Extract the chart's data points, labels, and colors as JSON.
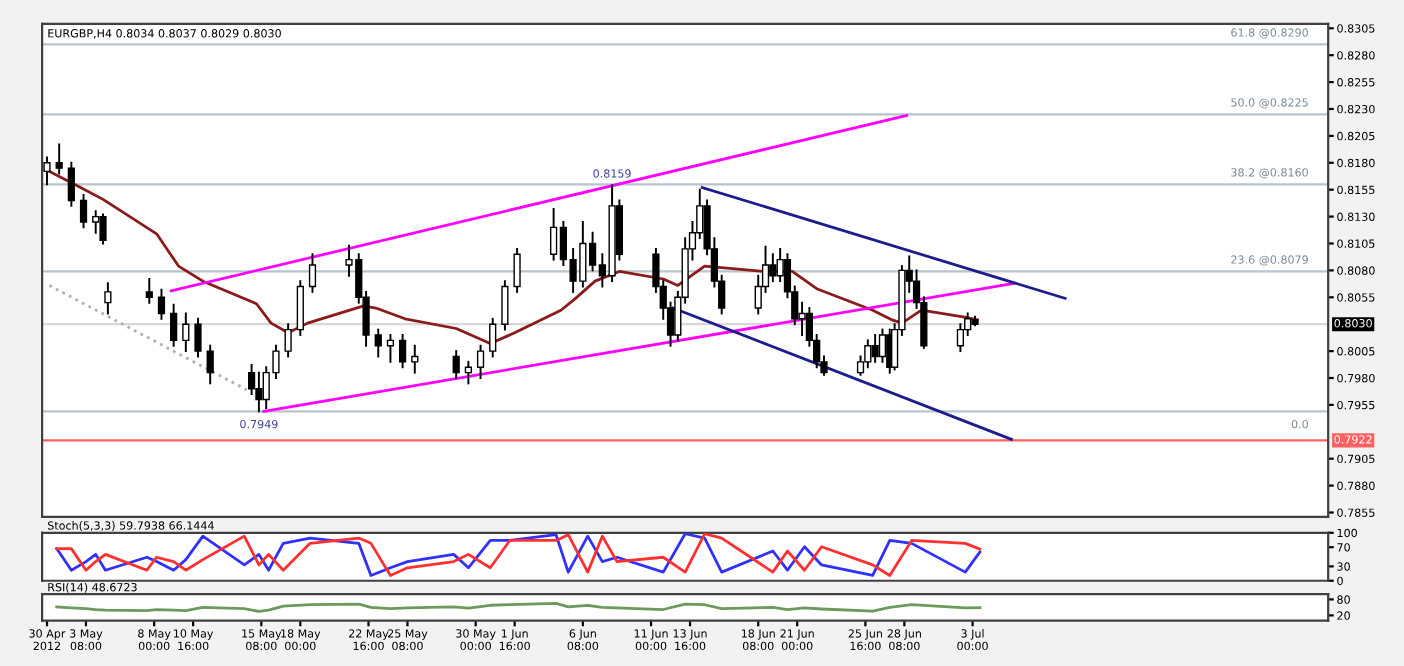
{
  "chart_data": [
    {
      "type": "candlestick",
      "title": "EURGBP,H4 0.8034 0.8037 0.8029 0.8030",
      "x": [
        "2012-04-30T16:00",
        "2012-05-01T12:00",
        "2012-05-02T08:00",
        "2012-05-03T04:00",
        "2012-05-04T00:00",
        "2012-05-04T12:00",
        "2012-05-04T20:00",
        "2012-05-07T16:00",
        "2012-05-08T12:00",
        "2012-05-09T08:00",
        "2012-05-10T04:00",
        "2012-05-11T00:00",
        "2012-05-11T20:00",
        "2012-05-14T16:00",
        "2012-05-15T04:00",
        "2012-05-15T16:00",
        "2012-05-16T08:00",
        "2012-05-17T04:00",
        "2012-05-18T00:00",
        "2012-05-18T20:00",
        "2012-05-21T08:00",
        "2012-05-22T00:00",
        "2012-05-22T12:00",
        "2012-05-23T08:00",
        "2012-05-24T04:00",
        "2012-05-25T00:00",
        "2012-05-25T20:00",
        "2012-05-28T16:00",
        "2012-05-29T12:00",
        "2012-05-30T08:00",
        "2012-05-31T04:00",
        "2012-06-01T00:00",
        "2012-06-01T20:00",
        "2012-06-04T08:00",
        "2012-06-05T00:00",
        "2012-06-05T16:00",
        "2012-06-06T08:00",
        "2012-06-07T00:00",
        "2012-06-07T16:00",
        "2012-06-08T08:00",
        "2012-06-08T20:00",
        "2012-06-11T08:00",
        "2012-06-11T20:00",
        "2012-06-12T08:00",
        "2012-06-12T20:00",
        "2012-06-13T08:00",
        "2012-06-13T20:00",
        "2012-06-14T08:00",
        "2012-06-14T20:00",
        "2012-06-15T08:00",
        "2012-06-15T20:00",
        "2012-06-18T08:00",
        "2012-06-18T20:00",
        "2012-06-19T08:00",
        "2012-06-19T20:00",
        "2012-06-20T08:00",
        "2012-06-20T20:00",
        "2012-06-21T08:00",
        "2012-06-21T20:00",
        "2012-06-22T08:00",
        "2012-06-22T20:00",
        "2012-06-25T08:00",
        "2012-06-25T20:00",
        "2012-06-26T08:00",
        "2012-06-26T20:00",
        "2012-06-27T08:00",
        "2012-06-27T16:00",
        "2012-06-28T04:00",
        "2012-06-28T16:00",
        "2012-06-29T04:00",
        "2012-06-29T16:00",
        "2012-07-02T04:00",
        "2012-07-02T16:00",
        "2012-07-03T04:00"
      ],
      "ohlc": [
        [
          0.8172,
          0.8185,
          0.816,
          0.818
        ],
        [
          0.818,
          0.8197,
          0.817,
          0.8175
        ],
        [
          0.8175,
          0.818,
          0.814,
          0.8145
        ],
        [
          0.8145,
          0.815,
          0.812,
          0.8125
        ],
        [
          0.8125,
          0.8135,
          0.8115,
          0.813
        ],
        [
          0.813,
          0.8132,
          0.8105,
          0.8108
        ],
        [
          0.805,
          0.8068,
          0.804,
          0.806
        ],
        [
          0.806,
          0.8072,
          0.805,
          0.8055
        ],
        [
          0.8055,
          0.8062,
          0.8035,
          0.804
        ],
        [
          0.804,
          0.8048,
          0.801,
          0.8015
        ],
        [
          0.8015,
          0.804,
          0.8005,
          0.803
        ],
        [
          0.803,
          0.8035,
          0.8,
          0.8005
        ],
        [
          0.8005,
          0.801,
          0.7975,
          0.7985
        ],
        [
          0.7985,
          0.7992,
          0.7965,
          0.797
        ],
        [
          0.797,
          0.7985,
          0.7949,
          0.796
        ],
        [
          0.796,
          0.799,
          0.7952,
          0.7985
        ],
        [
          0.7985,
          0.801,
          0.798,
          0.8005
        ],
        [
          0.8005,
          0.803,
          0.8,
          0.8025
        ],
        [
          0.8025,
          0.807,
          0.802,
          0.8065
        ],
        [
          0.8065,
          0.8095,
          0.806,
          0.8085
        ],
        [
          0.8085,
          0.8103,
          0.8075,
          0.809
        ],
        [
          0.809,
          0.8095,
          0.805,
          0.8055
        ],
        [
          0.8055,
          0.806,
          0.801,
          0.802
        ],
        [
          0.802,
          0.8025,
          0.8,
          0.801
        ],
        [
          0.801,
          0.802,
          0.7995,
          0.8015
        ],
        [
          0.8015,
          0.802,
          0.799,
          0.7995
        ],
        [
          0.7995,
          0.801,
          0.7985,
          0.8
        ],
        [
          0.8,
          0.8005,
          0.798,
          0.7985
        ],
        [
          0.7985,
          0.7995,
          0.7975,
          0.799
        ],
        [
          0.799,
          0.801,
          0.798,
          0.8005
        ],
        [
          0.8005,
          0.8035,
          0.8,
          0.803
        ],
        [
          0.803,
          0.807,
          0.8025,
          0.8065
        ],
        [
          0.8065,
          0.81,
          0.806,
          0.8095
        ],
        [
          0.8095,
          0.8137,
          0.809,
          0.812
        ],
        [
          0.812,
          0.8125,
          0.8085,
          0.809
        ],
        [
          0.809,
          0.81,
          0.806,
          0.807
        ],
        [
          0.807,
          0.8125,
          0.8065,
          0.8105
        ],
        [
          0.8105,
          0.8115,
          0.808,
          0.8085
        ],
        [
          0.8085,
          0.8095,
          0.8065,
          0.8075
        ],
        [
          0.8075,
          0.8159,
          0.807,
          0.814
        ],
        [
          0.814,
          0.8145,
          0.809,
          0.8095
        ],
        [
          0.8095,
          0.81,
          0.806,
          0.8065
        ],
        [
          0.8065,
          0.807,
          0.8035,
          0.8045
        ],
        [
          0.8045,
          0.805,
          0.801,
          0.802
        ],
        [
          0.802,
          0.806,
          0.8015,
          0.8055
        ],
        [
          0.8055,
          0.811,
          0.805,
          0.81
        ],
        [
          0.81,
          0.8125,
          0.809,
          0.8115
        ],
        [
          0.8115,
          0.8155,
          0.811,
          0.814
        ],
        [
          0.814,
          0.8145,
          0.8095,
          0.81
        ],
        [
          0.81,
          0.811,
          0.8065,
          0.807
        ],
        [
          0.807,
          0.8075,
          0.804,
          0.8045
        ],
        [
          0.8045,
          0.8075,
          0.804,
          0.8065
        ],
        [
          0.8065,
          0.8102,
          0.806,
          0.8085
        ],
        [
          0.8085,
          0.8095,
          0.807,
          0.8075
        ],
        [
          0.8075,
          0.81,
          0.807,
          0.809
        ],
        [
          0.809,
          0.8095,
          0.8055,
          0.806
        ],
        [
          0.806,
          0.8065,
          0.803,
          0.8035
        ],
        [
          0.8035,
          0.805,
          0.802,
          0.804
        ],
        [
          0.804,
          0.8045,
          0.801,
          0.8015
        ],
        [
          0.8015,
          0.802,
          0.799,
          0.7995
        ],
        [
          0.7995,
          0.8,
          0.7983,
          0.7985
        ],
        [
          0.7985,
          0.8,
          0.7983,
          0.7995
        ],
        [
          0.7995,
          0.8015,
          0.799,
          0.801
        ],
        [
          0.801,
          0.802,
          0.7995,
          0.8
        ],
        [
          0.8,
          0.8025,
          0.7995,
          0.802
        ],
        [
          0.802,
          0.8025,
          0.7985,
          0.799
        ],
        [
          0.799,
          0.803,
          0.7988,
          0.8025
        ],
        [
          0.8025,
          0.8084,
          0.802,
          0.808
        ],
        [
          0.808,
          0.8093,
          0.806,
          0.807
        ],
        [
          0.807,
          0.808,
          0.8045,
          0.805
        ],
        [
          0.805,
          0.8055,
          0.8008,
          0.801
        ],
        [
          0.801,
          0.803,
          0.8005,
          0.8025
        ],
        [
          0.8025,
          0.804,
          0.802,
          0.8035
        ],
        [
          0.8034,
          0.8037,
          0.8029,
          0.803
        ]
      ],
      "series": [
        {
          "type": "line",
          "color": "#8b1a1a",
          "x": [
            "2012-04-30T20:00",
            "2012-05-02T20:00",
            "2012-05-04T12:00",
            "2012-05-08T04:00",
            "2012-05-09T16:00",
            "2012-05-11T08:00",
            "2012-05-15T00:00",
            "2012-05-16T00:00",
            "2012-05-17T04:00",
            "2012-05-18T12:00",
            "2012-05-22T08:00",
            "2012-05-23T04:00",
            "2012-05-25T04:00",
            "2012-05-28T16:00",
            "2012-05-31T00:00",
            "2012-06-01T16:00",
            "2012-06-04T20:00",
            "2012-06-05T20:00",
            "2012-06-07T04:00",
            "2012-06-08T20:00",
            "2012-06-11T20:00",
            "2012-06-12T20:00",
            "2012-06-14T16:00",
            "2012-06-18T16:00",
            "2012-06-20T16:00",
            "2012-06-22T08:00",
            "2012-06-26T04:00",
            "2012-06-27T12:00",
            "2012-06-28T04:00",
            "2012-06-29T12:00",
            "2012-07-02T16:00",
            "2012-07-03T08:00"
          ],
          "values": [
            0.8172,
            0.8158,
            0.8146,
            0.8114,
            0.8084,
            0.807,
            0.8049,
            0.8031,
            0.8022,
            0.8031,
            0.8047,
            0.8045,
            0.8035,
            0.8026,
            0.8012,
            0.8022,
            0.8043,
            0.8054,
            0.807,
            0.8079,
            0.8072,
            0.8066,
            0.8084,
            0.8079,
            0.8079,
            0.8063,
            0.8043,
            0.8034,
            0.8031,
            0.8043,
            0.8036,
            0.8034
          ]
        },
        {
          "type": "line",
          "color": "#ff00ff",
          "x": [
            "2012-05-09T04:00",
            "2012-06-28T12:00"
          ],
          "values": [
            0.8061,
            0.8224
          ]
        },
        {
          "type": "line",
          "color": "#ff00ff",
          "x": [
            "2012-05-15T12:00",
            "2012-07-05T20:00"
          ],
          "values": [
            0.7949,
            0.8068
          ]
        },
        {
          "type": "line",
          "color": "#1c1c8c",
          "x": [
            "2012-06-14T12:00",
            "2012-07-09T08:00"
          ],
          "values": [
            0.8157,
            0.8054
          ]
        },
        {
          "type": "line",
          "color": "#1c1c8c",
          "x": [
            "2012-06-12T12:00",
            "2012-07-05T16:00"
          ],
          "values": [
            0.8045,
            0.7923
          ]
        },
        {
          "type": "line",
          "color": "#b0b0b0",
          "line_style": "dotted",
          "x": [
            "2012-04-30T20:00",
            "2012-05-14T08:00"
          ],
          "values": [
            0.8066,
            0.7969
          ]
        }
      ],
      "ref_lines": [
        {
          "axis": "y",
          "value": 0.829,
          "color": "#b8c4cc"
        },
        {
          "axis": "y",
          "value": 0.8225,
          "color": "#b8c4cc"
        },
        {
          "axis": "y",
          "value": 0.816,
          "color": "#b8c4cc"
        },
        {
          "axis": "y",
          "value": 0.8079,
          "color": "#b8c4cc"
        },
        {
          "axis": "y",
          "value": 0.7949,
          "color": "#b8c4cc"
        },
        {
          "axis": "y",
          "value": 0.803,
          "label": "0.8030",
          "color": "#d8d8d8"
        },
        {
          "axis": "y",
          "value": 0.7922,
          "label": "0.7922",
          "color": "#ff6060"
        }
      ],
      "annotations": [
        {
          "text": "0.8159",
          "x": "2012-06-08T08:00",
          "y": 0.8159
        },
        {
          "text": "0.7949",
          "x": "2012-05-15T04:00",
          "y": 0.7949
        },
        {
          "text": "61.8 @0.8290",
          "x": "2012-07-26T00:00",
          "y": 0.829
        },
        {
          "text": "50.0 @0.8225",
          "x": "2012-07-26T00:00",
          "y": 0.8225
        },
        {
          "text": "38.2 @0.8160",
          "x": "2012-07-26T00:00",
          "y": 0.816
        },
        {
          "text": "23.6 @0.8079",
          "x": "2012-07-26T00:00",
          "y": 0.8079
        },
        {
          "text": "0.0",
          "x": "2012-07-26T00:00",
          "y": 0.7949
        }
      ],
      "xlim": [
        "2012-04-30T08:00",
        "2012-07-27T08:00"
      ],
      "ylim": [
        0.7851,
        0.8309
      ],
      "yticks": [
        0.7855,
        {
          "value": 0.788,
          "label": "0.7880"
        },
        0.7905,
        0.7955,
        {
          "value": 0.798,
          "label": "0.7980"
        },
        0.8005,
        0.8055,
        {
          "value": 0.808,
          "label": "0.8080"
        },
        0.8105,
        {
          "value": 0.813,
          "label": "0.8130"
        },
        0.8155,
        {
          "value": 0.818,
          "label": "0.8180"
        },
        0.8205,
        {
          "value": 0.823,
          "label": "0.8230"
        },
        0.8255,
        {
          "value": 0.828,
          "label": "0.8280"
        },
        0.8305
      ],
      "tick_labels": "y"
    },
    {
      "type": "line",
      "title": "Stoch(5,3,3) 59.7938 66.1444",
      "x": [
        "2012-05-01T08:00",
        "2012-05-02T08:00",
        "2012-05-03T08:00",
        "2012-05-04T00:00",
        "2012-05-04T16:00",
        "2012-05-07T12:00",
        "2012-05-08T04:00",
        "2012-05-09T08:00",
        "2012-05-10T04:00",
        "2012-05-11T08:00",
        "2012-05-14T04:00",
        "2012-05-15T04:00",
        "2012-05-15T20:00",
        "2012-05-16T20:00",
        "2012-05-18T16:00",
        "2012-05-22T00:00",
        "2012-05-22T20:00",
        "2012-05-24T04:00",
        "2012-05-25T08:00",
        "2012-05-28T12:00",
        "2012-05-29T12:00",
        "2012-05-31T00:00",
        "2012-06-01T08:00",
        "2012-06-04T12:00",
        "2012-06-05T08:00",
        "2012-06-06T16:00",
        "2012-06-07T16:00",
        "2012-06-08T16:00",
        "2012-06-11T20:00",
        "2012-06-13T08:00",
        "2012-06-14T16:00",
        "2012-06-15T20:00",
        "2012-06-19T08:00",
        "2012-06-20T08:00",
        "2012-06-21T12:00",
        "2012-06-22T16:00",
        "2012-06-26T04:00",
        "2012-06-27T08:00",
        "2012-06-28T20:00",
        "2012-07-02T12:00",
        "2012-07-03T12:00"
      ],
      "series": [
        {
          "color": "#3030ff",
          "values": [
            67,
            22,
            40,
            55,
            22,
            49,
            40,
            22,
            44,
            93,
            33,
            55,
            22,
            78,
            89,
            78,
            11,
            27,
            40,
            55,
            27,
            84,
            84,
            96,
            18,
            93,
            40,
            49,
            18,
            98,
            89,
            18,
            62,
            22,
            71,
            33,
            11,
            84,
            78,
            18,
            60
          ]
        },
        {
          "color": "#ff3030",
          "values": [
            67,
            67,
            22,
            40,
            55,
            22,
            49,
            40,
            22,
            44,
            93,
            33,
            55,
            22,
            78,
            89,
            78,
            11,
            27,
            40,
            55,
            27,
            84,
            84,
            96,
            18,
            93,
            40,
            49,
            18,
            98,
            89,
            18,
            62,
            22,
            71,
            33,
            11,
            84,
            78,
            66
          ]
        }
      ],
      "xlim": [
        "2012-04-30T08:00",
        "2012-07-27T08:00"
      ],
      "ylim": [
        0,
        100
      ],
      "yticks": [
        0,
        30,
        70,
        100
      ],
      "tick_labels": "y"
    },
    {
      "type": "line",
      "title": "RSI(14) 48.6723",
      "x": [
        "2012-05-01T08:00",
        "2012-05-02T08:00",
        "2012-05-03T08:00",
        "2012-05-04T00:00",
        "2012-05-04T16:00",
        "2012-05-07T12:00",
        "2012-05-08T04:00",
        "2012-05-09T08:00",
        "2012-05-10T04:00",
        "2012-05-11T08:00",
        "2012-05-14T04:00",
        "2012-05-15T04:00",
        "2012-05-15T20:00",
        "2012-05-16T20:00",
        "2012-05-18T16:00",
        "2012-05-22T00:00",
        "2012-05-22T20:00",
        "2012-05-24T04:00",
        "2012-05-25T08:00",
        "2012-05-28T12:00",
        "2012-05-29T12:00",
        "2012-05-31T00:00",
        "2012-06-01T08:00",
        "2012-06-04T12:00",
        "2012-06-05T08:00",
        "2012-06-06T16:00",
        "2012-06-07T16:00",
        "2012-06-08T16:00",
        "2012-06-11T20:00",
        "2012-06-13T08:00",
        "2012-06-14T16:00",
        "2012-06-15T20:00",
        "2012-06-19T08:00",
        "2012-06-20T08:00",
        "2012-06-21T12:00",
        "2012-06-22T16:00",
        "2012-06-26T04:00",
        "2012-06-27T08:00",
        "2012-06-28T20:00",
        "2012-07-02T12:00",
        "2012-07-03T12:00"
      ],
      "series": [
        {
          "color": "#6b9a5b",
          "values": [
            52,
            48,
            45,
            42,
            40,
            38,
            42,
            40,
            38,
            50,
            45,
            35,
            40,
            55,
            60,
            62,
            50,
            45,
            48,
            52,
            47,
            58,
            60,
            65,
            52,
            58,
            50,
            48,
            42,
            62,
            60,
            45,
            50,
            42,
            48,
            44,
            36,
            50,
            60,
            48,
            49
          ]
        }
      ],
      "xlim": [
        "2012-04-30T08:00",
        "2012-07-27T08:00"
      ],
      "ylim": [
        0,
        100
      ],
      "yticks": [
        20,
        80
      ],
      "xticks": [
        {
          "value": "2012-04-30T16:00",
          "label": "30 Apr 2012"
        },
        {
          "value": "2012-05-03T08:00",
          "label": "3 May 08:00"
        },
        {
          "value": "2012-05-08T00:00",
          "label": "8 May 00:00"
        },
        {
          "value": "2012-05-10T16:00",
          "label": "10 May 16:00"
        },
        {
          "value": "2012-05-15T08:00",
          "label": "15 May 08:00"
        },
        {
          "value": "2012-05-18T00:00",
          "label": "18 May 00:00"
        },
        {
          "value": "2012-05-22T16:00",
          "label": "22 May 16:00"
        },
        {
          "value": "2012-05-25T08:00",
          "label": "25 May 08:00"
        },
        {
          "value": "2012-05-30T00:00",
          "label": "30 May 00:00"
        },
        {
          "value": "2012-06-01T16:00",
          "label": "1 Jun 16:00"
        },
        {
          "value": "2012-06-06T08:00",
          "label": "6 Jun 08:00"
        },
        {
          "value": "2012-06-11T00:00",
          "label": "11 Jun 00:00"
        },
        {
          "value": "2012-06-13T16:00",
          "label": "13 Jun 16:00"
        },
        {
          "value": "2012-06-18T08:00",
          "label": "18 Jun 08:00"
        },
        {
          "value": "2012-06-21T00:00",
          "label": "21 Jun 00:00"
        },
        {
          "value": "2012-06-25T16:00",
          "label": "25 Jun 16:00"
        },
        {
          "value": "2012-06-28T08:00",
          "label": "28 Jun 08:00"
        },
        {
          "value": "2012-07-03T00:00",
          "label": "3 Jul 00:00"
        }
      ]
    }
  ]
}
